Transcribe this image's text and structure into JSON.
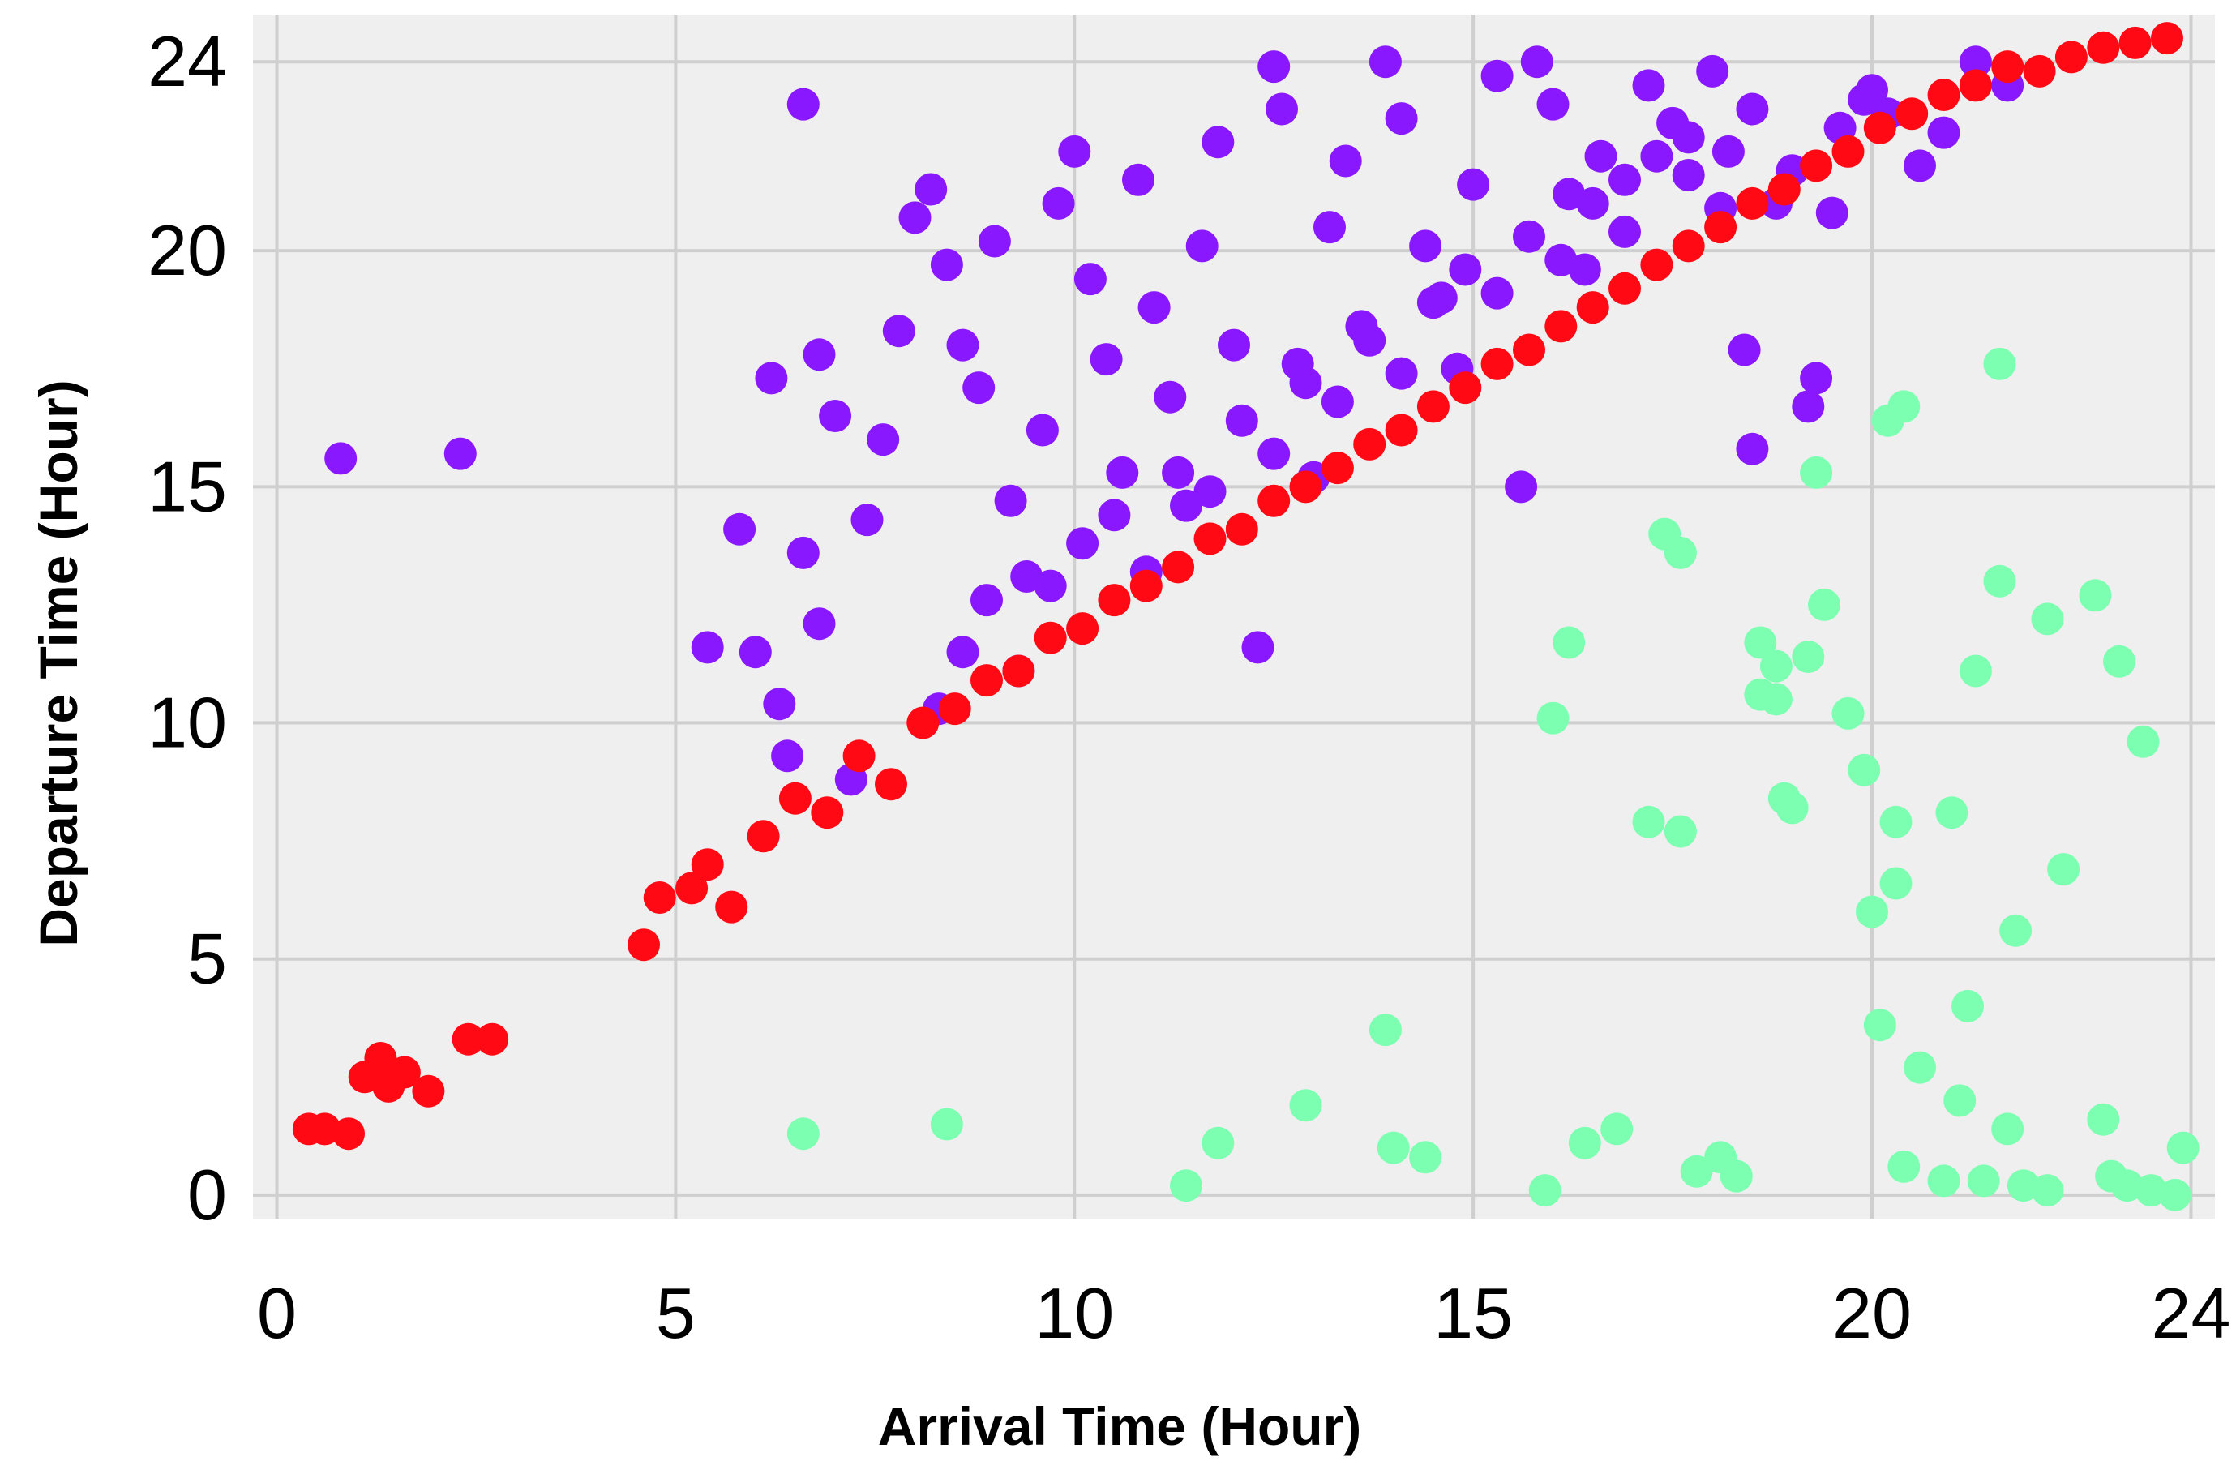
{
  "chart_data": {
    "type": "scatter",
    "title": "",
    "xlabel": "Arrival Time (Hour)",
    "ylabel": "Departure Time (Hour)",
    "xlim": [
      -0.3,
      24.3
    ],
    "ylim": [
      -0.5,
      25
    ],
    "grid": true,
    "legend": "none",
    "background": "#efefef",
    "grid_color": "#cfcfcf",
    "x_ticks": [
      {
        "value": 0,
        "label": "0"
      },
      {
        "value": 5,
        "label": "5"
      },
      {
        "value": 10,
        "label": "10"
      },
      {
        "value": 15,
        "label": "15"
      },
      {
        "value": 20,
        "label": "20"
      },
      {
        "value": 24,
        "label": "24"
      }
    ],
    "y_ticks": [
      {
        "value": 0,
        "label": "0"
      },
      {
        "value": 5,
        "label": "5"
      },
      {
        "value": 10,
        "label": "10"
      },
      {
        "value": 15,
        "label": "15"
      },
      {
        "value": 20,
        "label": "20"
      },
      {
        "value": 24,
        "label": "24"
      }
    ],
    "series": [
      {
        "color": "#8a18ff",
        "points": [
          [
            6.6,
            23.1
          ],
          [
            0.8,
            15.6
          ],
          [
            2.3,
            15.7
          ],
          [
            6.2,
            17.3
          ],
          [
            5.8,
            14.1
          ],
          [
            5.4,
            11.6
          ],
          [
            6.0,
            11.5
          ],
          [
            6.3,
            10.4
          ],
          [
            6.6,
            13.6
          ],
          [
            6.8,
            17.8
          ],
          [
            7.0,
            16.5
          ],
          [
            6.8,
            12.1
          ],
          [
            6.4,
            9.3
          ],
          [
            7.2,
            8.8
          ],
          [
            7.4,
            14.3
          ],
          [
            7.6,
            16.0
          ],
          [
            7.8,
            18.3
          ],
          [
            8.0,
            20.7
          ],
          [
            8.2,
            21.3
          ],
          [
            8.4,
            19.7
          ],
          [
            8.6,
            18.0
          ],
          [
            8.8,
            17.1
          ],
          [
            9.0,
            20.2
          ],
          [
            9.2,
            14.7
          ],
          [
            9.4,
            13.1
          ],
          [
            9.6,
            16.2
          ],
          [
            9.8,
            21.0
          ],
          [
            10.0,
            22.1
          ],
          [
            10.2,
            19.4
          ],
          [
            10.4,
            17.7
          ],
          [
            10.6,
            15.3
          ],
          [
            10.8,
            21.5
          ],
          [
            11.0,
            18.8
          ],
          [
            11.2,
            16.9
          ],
          [
            11.4,
            14.6
          ],
          [
            11.6,
            20.1
          ],
          [
            11.8,
            22.3
          ],
          [
            12.0,
            18.0
          ],
          [
            12.3,
            11.6
          ],
          [
            12.5,
            23.9
          ],
          [
            12.6,
            23.0
          ],
          [
            12.8,
            17.6
          ],
          [
            13.0,
            15.2
          ],
          [
            13.2,
            20.5
          ],
          [
            13.4,
            21.9
          ],
          [
            13.6,
            18.4
          ],
          [
            13.9,
            24.0
          ],
          [
            14.1,
            22.8
          ],
          [
            14.4,
            20.1
          ],
          [
            14.6,
            19.0
          ],
          [
            14.8,
            17.5
          ],
          [
            15.0,
            21.4
          ],
          [
            15.3,
            23.7
          ],
          [
            15.6,
            15.0
          ],
          [
            15.8,
            24.0
          ],
          [
            16.0,
            23.1
          ],
          [
            16.2,
            21.2
          ],
          [
            16.4,
            19.6
          ],
          [
            16.6,
            22.0
          ],
          [
            16.9,
            20.4
          ],
          [
            17.2,
            23.5
          ],
          [
            17.5,
            22.7
          ],
          [
            17.7,
            21.6
          ],
          [
            18.0,
            23.8
          ],
          [
            18.2,
            22.1
          ],
          [
            18.4,
            17.9
          ],
          [
            18.5,
            15.8
          ],
          [
            18.8,
            21.0
          ],
          [
            19.2,
            16.7
          ],
          [
            19.3,
            17.3
          ],
          [
            19.6,
            22.6
          ],
          [
            19.9,
            23.2
          ],
          [
            20.2,
            22.9
          ],
          [
            20.6,
            21.8
          ],
          [
            20.9,
            22.5
          ],
          [
            21.3,
            24.0
          ],
          [
            21.7,
            23.5
          ],
          [
            8.3,
            10.3
          ],
          [
            8.6,
            11.5
          ],
          [
            8.9,
            12.6
          ],
          [
            9.3,
            11.1
          ],
          [
            9.7,
            12.9
          ],
          [
            10.1,
            13.8
          ],
          [
            10.5,
            14.4
          ],
          [
            10.9,
            13.2
          ],
          [
            11.3,
            15.3
          ],
          [
            11.7,
            14.9
          ],
          [
            12.1,
            16.4
          ],
          [
            12.5,
            15.7
          ],
          [
            12.9,
            17.2
          ],
          [
            13.3,
            16.8
          ],
          [
            13.7,
            18.1
          ],
          [
            14.1,
            17.4
          ],
          [
            14.5,
            18.9
          ],
          [
            14.9,
            19.6
          ],
          [
            15.3,
            19.1
          ],
          [
            15.7,
            20.3
          ],
          [
            16.1,
            19.8
          ],
          [
            16.5,
            21.0
          ],
          [
            16.9,
            21.5
          ],
          [
            17.3,
            22.0
          ],
          [
            17.7,
            22.4
          ],
          [
            18.1,
            20.9
          ],
          [
            18.5,
            23.0
          ],
          [
            19.0,
            21.7
          ],
          [
            19.5,
            20.8
          ],
          [
            20.0,
            23.4
          ]
        ]
      },
      {
        "color": "#ff0a14",
        "points": [
          [
            0.4,
            1.4
          ],
          [
            0.6,
            1.4
          ],
          [
            0.9,
            1.3
          ],
          [
            1.1,
            2.5
          ],
          [
            1.3,
            2.9
          ],
          [
            1.4,
            2.3
          ],
          [
            1.6,
            2.6
          ],
          [
            1.9,
            2.2
          ],
          [
            2.4,
            3.3
          ],
          [
            2.7,
            3.3
          ],
          [
            4.6,
            5.3
          ],
          [
            4.8,
            6.3
          ],
          [
            5.2,
            6.5
          ],
          [
            5.4,
            7.0
          ],
          [
            5.7,
            6.1
          ],
          [
            6.1,
            7.6
          ],
          [
            6.5,
            8.4
          ],
          [
            6.9,
            8.1
          ],
          [
            7.3,
            9.3
          ],
          [
            7.7,
            8.7
          ],
          [
            8.1,
            10.0
          ],
          [
            8.5,
            10.3
          ],
          [
            8.9,
            10.9
          ],
          [
            9.3,
            11.1
          ],
          [
            9.7,
            11.8
          ],
          [
            10.1,
            12.0
          ],
          [
            10.5,
            12.6
          ],
          [
            10.9,
            12.9
          ],
          [
            11.3,
            13.3
          ],
          [
            11.7,
            13.9
          ],
          [
            12.1,
            14.1
          ],
          [
            12.5,
            14.7
          ],
          [
            12.9,
            15.0
          ],
          [
            13.3,
            15.4
          ],
          [
            13.7,
            15.9
          ],
          [
            14.1,
            16.2
          ],
          [
            14.5,
            16.7
          ],
          [
            14.9,
            17.1
          ],
          [
            15.3,
            17.6
          ],
          [
            15.7,
            17.9
          ],
          [
            16.1,
            18.4
          ],
          [
            16.5,
            18.8
          ],
          [
            16.9,
            19.2
          ],
          [
            17.3,
            19.7
          ],
          [
            17.7,
            20.1
          ],
          [
            18.1,
            20.5
          ],
          [
            18.5,
            21.0
          ],
          [
            18.9,
            21.3
          ],
          [
            19.3,
            21.8
          ],
          [
            19.7,
            22.1
          ],
          [
            20.1,
            22.6
          ],
          [
            20.5,
            22.9
          ],
          [
            20.9,
            23.3
          ],
          [
            21.3,
            23.5
          ],
          [
            21.7,
            23.9
          ],
          [
            22.1,
            23.8
          ],
          [
            22.5,
            24.1
          ],
          [
            22.9,
            24.3
          ],
          [
            23.3,
            24.4
          ],
          [
            23.7,
            24.5
          ]
        ]
      },
      {
        "color": "#7dffb2",
        "points": [
          [
            6.6,
            1.3
          ],
          [
            8.4,
            1.5
          ],
          [
            11.4,
            0.2
          ],
          [
            11.8,
            1.1
          ],
          [
            12.9,
            1.9
          ],
          [
            13.9,
            3.5
          ],
          [
            14.0,
            1.0
          ],
          [
            14.4,
            0.8
          ],
          [
            15.9,
            0.1
          ],
          [
            16.0,
            10.1
          ],
          [
            16.2,
            11.7
          ],
          [
            16.4,
            1.1
          ],
          [
            16.8,
            1.4
          ],
          [
            17.2,
            7.9
          ],
          [
            17.4,
            14.0
          ],
          [
            17.6,
            7.7
          ],
          [
            17.6,
            13.6
          ],
          [
            17.8,
            0.5
          ],
          [
            18.1,
            0.8
          ],
          [
            18.3,
            0.4
          ],
          [
            18.6,
            11.7
          ],
          [
            18.6,
            10.6
          ],
          [
            18.8,
            10.5
          ],
          [
            18.8,
            11.2
          ],
          [
            18.9,
            8.4
          ],
          [
            19.0,
            8.2
          ],
          [
            19.2,
            11.4
          ],
          [
            19.3,
            15.3
          ],
          [
            19.4,
            12.5
          ],
          [
            19.7,
            10.2
          ],
          [
            19.9,
            9.0
          ],
          [
            20.0,
            6.0
          ],
          [
            20.1,
            3.6
          ],
          [
            20.2,
            16.4
          ],
          [
            20.3,
            6.6
          ],
          [
            20.3,
            7.9
          ],
          [
            20.4,
            0.6
          ],
          [
            20.4,
            16.7
          ],
          [
            20.6,
            2.7
          ],
          [
            20.9,
            0.3
          ],
          [
            21.0,
            8.1
          ],
          [
            21.1,
            2.0
          ],
          [
            21.2,
            4.0
          ],
          [
            21.3,
            11.1
          ],
          [
            21.4,
            0.3
          ],
          [
            21.6,
            13.0
          ],
          [
            21.6,
            17.6
          ],
          [
            21.7,
            1.4
          ],
          [
            21.8,
            5.6
          ],
          [
            21.9,
            0.2
          ],
          [
            22.2,
            0.1
          ],
          [
            22.2,
            12.2
          ],
          [
            22.4,
            6.9
          ],
          [
            22.8,
            12.7
          ],
          [
            22.9,
            1.6
          ],
          [
            23.0,
            0.4
          ],
          [
            23.1,
            11.3
          ],
          [
            23.2,
            0.2
          ],
          [
            23.4,
            9.6
          ],
          [
            23.5,
            0.1
          ],
          [
            23.8,
            0.0
          ],
          [
            23.9,
            1.0
          ]
        ]
      }
    ]
  }
}
